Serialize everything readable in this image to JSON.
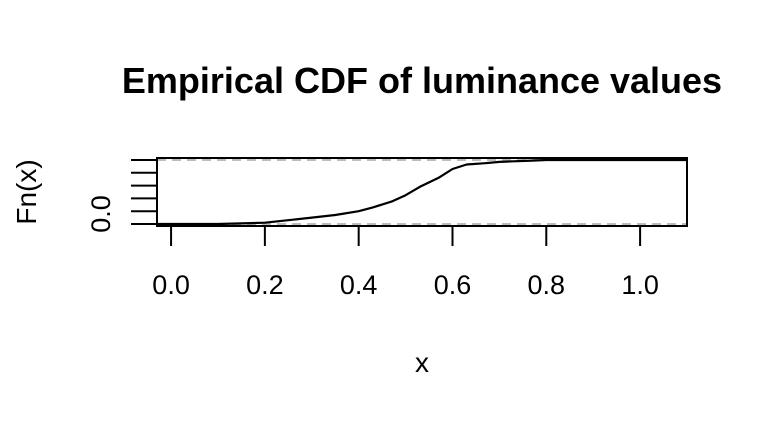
{
  "chart_data": {
    "type": "line",
    "title": "Empirical CDF of luminance values",
    "xlabel": "x",
    "ylabel": "Fn(x)",
    "xlim": [
      -0.03,
      1.1
    ],
    "ylim": [
      0.0,
      1.0
    ],
    "x_ticks": [
      0.0,
      0.2,
      0.4,
      0.6,
      0.8,
      1.0
    ],
    "x_tick_labels": [
      "0.0",
      "0.2",
      "0.4",
      "0.6",
      "0.8",
      "1.0"
    ],
    "y_ticks": [
      0.0,
      0.2,
      0.4,
      0.6,
      0.8,
      1.0
    ],
    "y_tick_labels": [
      "0.0",
      "",
      "",
      "",
      "",
      ""
    ],
    "reference_lines": [
      0,
      1
    ],
    "grid": false,
    "legend": "none",
    "series": [
      {
        "x": [
          -0.03,
          0.1,
          0.15,
          0.2,
          0.25,
          0.3,
          0.35,
          0.4,
          0.43,
          0.47,
          0.5,
          0.53,
          0.57,
          0.6,
          0.63,
          0.67,
          0.7,
          0.73,
          0.77,
          0.8,
          0.85,
          0.9,
          1.0,
          1.1
        ],
        "y": [
          0.0,
          0.0,
          0.01,
          0.02,
          0.06,
          0.1,
          0.14,
          0.2,
          0.26,
          0.35,
          0.45,
          0.58,
          0.72,
          0.86,
          0.93,
          0.95,
          0.97,
          0.98,
          0.99,
          1.0,
          1.0,
          1.0,
          1.0,
          1.0
        ]
      }
    ]
  }
}
